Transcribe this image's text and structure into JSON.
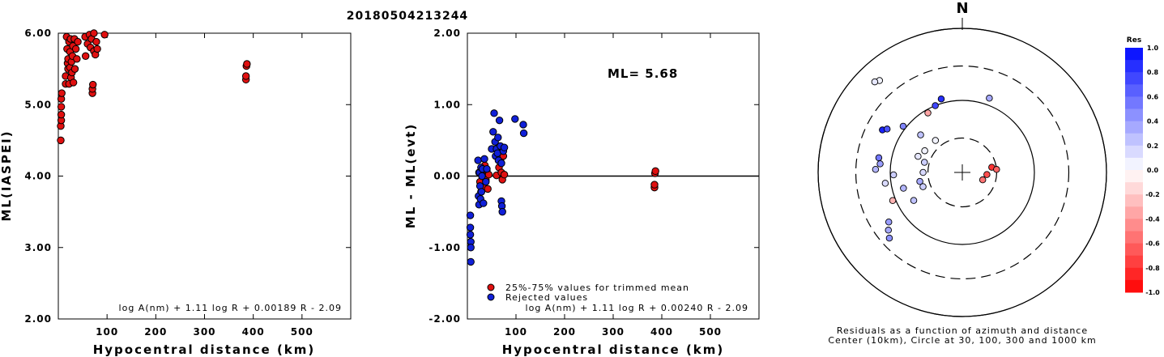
{
  "figure_title": "20180504213244",
  "colors": {
    "trimmed": "#e01010",
    "rejected": "#1020d8",
    "marker_edge": "#000000"
  },
  "chart_data": [
    {
      "type": "scatter",
      "xlabel": "Hypocentral distance (km)",
      "ylabel": "ML(IASPEI)",
      "xlim": [
        0,
        600
      ],
      "ylim": [
        2.0,
        6.0
      ],
      "xticks": [
        "100",
        "200",
        "300",
        "400",
        "500"
      ],
      "yticks": [
        "2.00",
        "3.00",
        "4.00",
        "5.00",
        "6.00"
      ],
      "formula": "log A(nm) + 1.11 log R + 0.00189 R - 2.09",
      "series": [
        {
          "color": "trimmed",
          "points": [
            [
              5,
              4.5
            ],
            [
              5,
              4.7
            ],
            [
              6,
              4.78
            ],
            [
              6,
              4.86
            ],
            [
              6,
              4.97
            ],
            [
              6,
              5.08
            ],
            [
              7,
              5.16
            ],
            [
              15,
              5.29
            ],
            [
              15,
              5.4
            ],
            [
              17,
              5.95
            ],
            [
              18,
              5.78
            ],
            [
              19,
              5.58
            ],
            [
              20,
              5.5
            ],
            [
              20,
              5.64
            ],
            [
              22,
              5.88
            ],
            [
              22,
              5.29
            ],
            [
              24,
              5.52
            ],
            [
              24,
              5.74
            ],
            [
              25,
              5.92
            ],
            [
              26,
              5.38
            ],
            [
              27,
              5.6
            ],
            [
              28,
              5.45
            ],
            [
              29,
              5.68
            ],
            [
              30,
              5.82
            ],
            [
              31,
              5.31
            ],
            [
              33,
              5.92
            ],
            [
              34,
              5.5
            ],
            [
              36,
              5.78
            ],
            [
              38,
              5.64
            ],
            [
              40,
              5.88
            ],
            [
              55,
              5.95
            ],
            [
              56,
              5.68
            ],
            [
              60,
              5.85
            ],
            [
              64,
              5.98
            ],
            [
              66,
              5.8
            ],
            [
              68,
              5.92
            ],
            [
              70,
              5.16
            ],
            [
              70,
              5.22
            ],
            [
              71,
              5.28
            ],
            [
              73,
              6.0
            ],
            [
              73,
              5.75
            ],
            [
              76,
              5.7
            ],
            [
              78,
              5.88
            ],
            [
              80,
              5.78
            ],
            [
              95,
              5.98
            ],
            [
              385,
              5.35
            ],
            [
              385,
              5.4
            ],
            [
              386,
              5.54
            ],
            [
              387,
              5.57
            ]
          ]
        }
      ]
    },
    {
      "type": "scatter",
      "xlabel": "Hypocentral distance (km)",
      "ylabel": "ML - ML(evt)",
      "xlim": [
        0,
        600
      ],
      "ylim": [
        -2.0,
        2.0
      ],
      "xticks": [
        "100",
        "200",
        "300",
        "400",
        "500"
      ],
      "yticks": [
        "-2.00",
        "-1.00",
        "0.00",
        "1.00",
        "2.00"
      ],
      "annotation": "ML= 5.68",
      "formula": "log A(nm) + 1.11 log R + 0.00240 R - 2.09",
      "legend": [
        "25%-75% values for trimmed mean",
        "Rejected values"
      ],
      "series": [
        {
          "name": "25%-75% values for trimmed mean",
          "color": "trimmed",
          "points": [
            [
              24,
              0.05
            ],
            [
              26,
              -0.08
            ],
            [
              28,
              -0.22
            ],
            [
              30,
              0.12
            ],
            [
              32,
              -0.15
            ],
            [
              34,
              0.02
            ],
            [
              36,
              0.15
            ],
            [
              38,
              -0.05
            ],
            [
              40,
              0.08
            ],
            [
              42,
              -0.18
            ],
            [
              44,
              0.02
            ],
            [
              60,
              0.01
            ],
            [
              65,
              0.12
            ],
            [
              68,
              0.22
            ],
            [
              70,
              0.05
            ],
            [
              72,
              -0.05
            ],
            [
              74,
              0.28
            ],
            [
              76,
              0.02
            ],
            [
              385,
              -0.16
            ],
            [
              385,
              -0.12
            ],
            [
              386,
              0.04
            ],
            [
              387,
              0.07
            ]
          ]
        },
        {
          "name": "Rejected values",
          "color": "rejected",
          "points": [
            [
              6,
              -0.55
            ],
            [
              6,
              -0.72
            ],
            [
              6,
              -0.82
            ],
            [
              7,
              -0.92
            ],
            [
              7,
              -1.0
            ],
            [
              7,
              -1.2
            ],
            [
              22,
              0.22
            ],
            [
              23,
              -0.28
            ],
            [
              24,
              -0.4
            ],
            [
              25,
              0.05
            ],
            [
              26,
              -0.14
            ],
            [
              27,
              -0.32
            ],
            [
              28,
              0.12
            ],
            [
              29,
              -0.22
            ],
            [
              30,
              0.0
            ],
            [
              31,
              0.1
            ],
            [
              33,
              -0.38
            ],
            [
              35,
              0.24
            ],
            [
              38,
              -0.08
            ],
            [
              40,
              0.1
            ],
            [
              50,
              0.38
            ],
            [
              53,
              0.62
            ],
            [
              55,
              0.88
            ],
            [
              57,
              0.48
            ],
            [
              58,
              0.28
            ],
            [
              60,
              0.38
            ],
            [
              62,
              0.32
            ],
            [
              63,
              0.54
            ],
            [
              64,
              0.22
            ],
            [
              66,
              0.78
            ],
            [
              68,
              0.42
            ],
            [
              70,
              0.18
            ],
            [
              70,
              -0.35
            ],
            [
              71,
              -0.42
            ],
            [
              72,
              -0.5
            ],
            [
              74,
              0.35
            ],
            [
              76,
              0.4
            ],
            [
              98,
              0.8
            ],
            [
              115,
              0.72
            ],
            [
              116,
              0.6
            ]
          ]
        }
      ]
    },
    {
      "type": "scatter",
      "title": "N",
      "caption_lines": [
        "Residuals as a function of azimuth and distance",
        "Center (10km), Circle at 30, 100, 300 and 1000 km"
      ],
      "colorbar": {
        "label": "Res",
        "ticks": [
          "1.0",
          "0.8",
          "0.6",
          "0.4",
          "0.2",
          "0.0",
          "-0.2",
          "-0.4",
          "-0.6",
          "-0.8",
          "-1.0"
        ],
        "range": [
          -1.0,
          1.0
        ]
      },
      "rings_km": [
        30,
        100,
        300,
        1000
      ],
      "stations": [
        {
          "azimuth": 95,
          "distance": 22,
          "residual": -0.7
        },
        {
          "azimuth": 80,
          "distance": 26,
          "residual": -0.8
        },
        {
          "azimuth": 110,
          "distance": 20,
          "residual": -0.55
        },
        {
          "azimuth": 85,
          "distance": 30,
          "residual": -0.6
        },
        {
          "azimuth": 20,
          "distance": 125,
          "residual": 0.35
        },
        {
          "azimuth": 330,
          "distance": 90,
          "residual": -0.35
        },
        {
          "azimuth": 338,
          "distance": 100,
          "residual": 0.75
        },
        {
          "azimuth": 344,
          "distance": 115,
          "residual": 0.85
        },
        {
          "azimuth": 318,
          "distance": 520,
          "residual": 0.05
        },
        {
          "azimuth": 316,
          "distance": 560,
          "residual": 0.1
        },
        {
          "azimuth": 298,
          "distance": 180,
          "residual": 0.9
        },
        {
          "azimuth": 300,
          "distance": 160,
          "residual": 0.7
        },
        {
          "azimuth": 308,
          "distance": 110,
          "residual": 0.5
        },
        {
          "azimuth": 312,
          "distance": 60,
          "residual": 0.25
        },
        {
          "azimuth": 280,
          "distance": 150,
          "residual": 0.55
        },
        {
          "azimuth": 276,
          "distance": 140,
          "residual": 0.4
        },
        {
          "azimuth": 272,
          "distance": 160,
          "residual": 0.3
        },
        {
          "azimuth": 268,
          "distance": 90,
          "residual": 0.2
        },
        {
          "azimuth": 262,
          "distance": 120,
          "residual": 0.15
        },
        {
          "azimuth": 255,
          "distance": 70,
          "residual": 0.3
        },
        {
          "azimuth": 248,
          "distance": 110,
          "residual": -0.3
        },
        {
          "azimuth": 240,
          "distance": 60,
          "residual": 0.25
        },
        {
          "azimuth": 236,
          "distance": 170,
          "residual": 0.4
        },
        {
          "azimuth": 232,
          "distance": 200,
          "residual": 0.35
        },
        {
          "azimuth": 228,
          "distance": 230,
          "residual": 0.45
        },
        {
          "azimuth": 290,
          "distance": 45,
          "residual": 0.1
        },
        {
          "azimuth": 300,
          "distance": 40,
          "residual": 0.05
        },
        {
          "azimuth": 285,
          "distance": 35,
          "residual": 0.2
        },
        {
          "azimuth": 270,
          "distance": 35,
          "residual": 0.15
        },
        {
          "azimuth": 258,
          "distance": 40,
          "residual": 0.35
        },
        {
          "azimuth": 250,
          "distance": 38,
          "residual": 0.2
        },
        {
          "azimuth": 320,
          "distance": 38,
          "residual": 0.05
        }
      ]
    }
  ]
}
